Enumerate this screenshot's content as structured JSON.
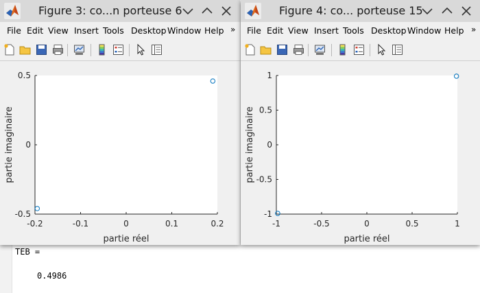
{
  "console": {
    "var_line": "TEB =",
    "value_line": "0.4986"
  },
  "figures": [
    {
      "title": "Figure 3: co...n porteuse 6",
      "menu": [
        "File",
        "Edit",
        "View",
        "Insert",
        "Tools",
        "Desktop",
        "Window",
        "Help"
      ],
      "more": "»",
      "icons": [
        "new-figure-icon",
        "open-file-icon",
        "save-icon",
        "print-icon",
        "link-plot-icon",
        "colorbar-icon",
        "legend-icon",
        "select-arrow-icon",
        "property-editor-icon"
      ],
      "chart_data": {
        "type": "scatter",
        "xlabel": "partie réel",
        "ylabel": "partie imaginaire",
        "xlim": [
          -0.2,
          0.2
        ],
        "ylim": [
          -0.5,
          0.5
        ],
        "xticks": [
          -0.2,
          -0.1,
          0,
          0.1,
          0.2
        ],
        "xtick_labels": [
          "-0.2",
          "-0.1",
          "0",
          "0.1",
          "0.2"
        ],
        "yticks": [
          -0.5,
          0,
          0.5
        ],
        "ytick_labels": [
          "-0.5",
          "0",
          "0.5"
        ],
        "marker": "circle",
        "marker_color": "#0072bd",
        "grid": false,
        "points": [
          {
            "x": 0.19,
            "y": 0.46
          },
          {
            "x": -0.195,
            "y": -0.46
          }
        ]
      }
    },
    {
      "title": "Figure 4: co... porteuse 15",
      "menu": [
        "File",
        "Edit",
        "View",
        "Insert",
        "Tools",
        "Desktop",
        "Window",
        "Help"
      ],
      "more": "»",
      "icons": [
        "new-figure-icon",
        "open-file-icon",
        "save-icon",
        "print-icon",
        "link-plot-icon",
        "colorbar-icon",
        "legend-icon",
        "select-arrow-icon",
        "property-editor-icon"
      ],
      "chart_data": {
        "type": "scatter",
        "xlabel": "partie réel",
        "ylabel": "partie imaginaire",
        "xlim": [
          -1,
          1
        ],
        "ylim": [
          -1,
          1
        ],
        "xticks": [
          -1,
          -0.5,
          0,
          0.5,
          1
        ],
        "xtick_labels": [
          "-1",
          "-0.5",
          "0",
          "0.5",
          "1"
        ],
        "yticks": [
          -1,
          -0.5,
          0,
          0.5,
          1
        ],
        "ytick_labels": [
          "-1",
          "-0.5",
          "0",
          "0.5",
          "1"
        ],
        "marker": "circle",
        "marker_color": "#0072bd",
        "grid": false,
        "points": [
          {
            "x": 0.99,
            "y": 0.99
          },
          {
            "x": -0.985,
            "y": -0.99
          }
        ]
      }
    }
  ]
}
